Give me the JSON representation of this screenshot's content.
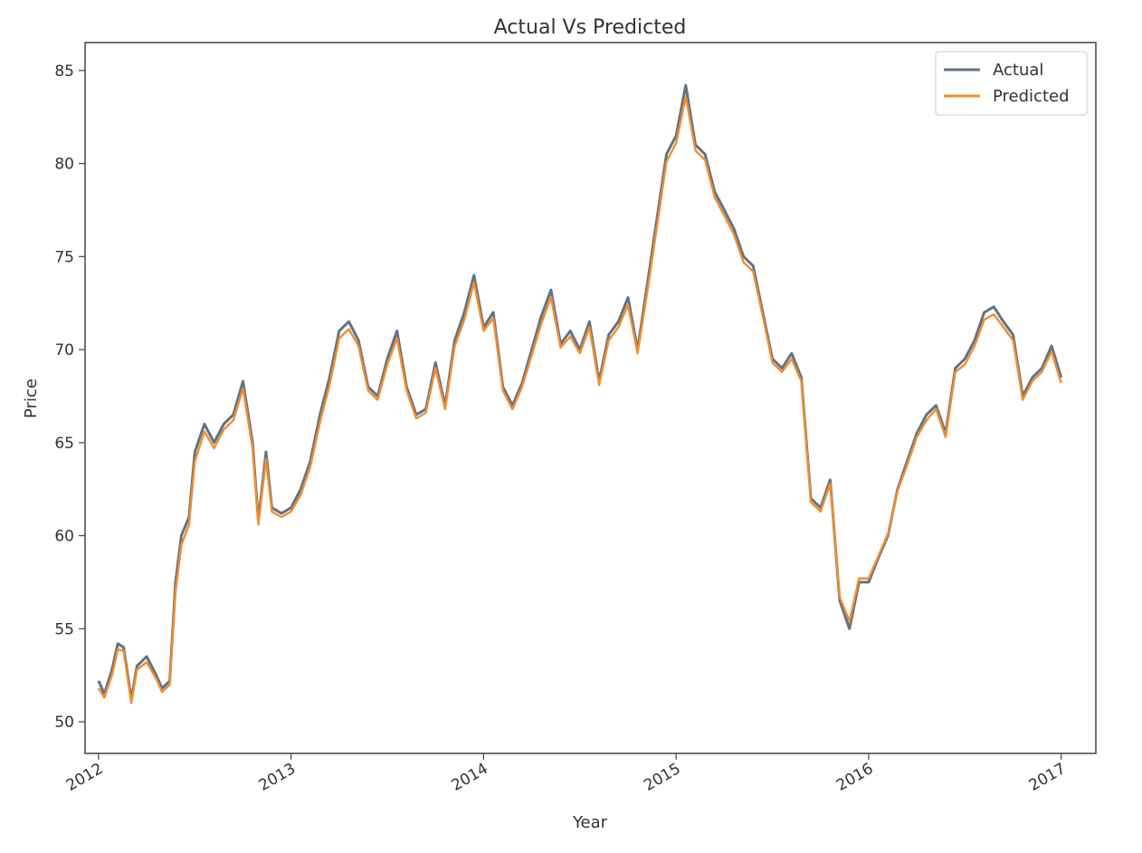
{
  "chart_data": {
    "type": "line",
    "title": "Actual Vs Predicted",
    "xlabel": "Year",
    "ylabel": "Price",
    "xlim": [
      2011.93,
      2017.18
    ],
    "ylim": [
      48.3,
      86.5
    ],
    "x_ticks": [
      {
        "value": 2012,
        "label": "2012"
      },
      {
        "value": 2013,
        "label": "2013"
      },
      {
        "value": 2014,
        "label": "2014"
      },
      {
        "value": 2015,
        "label": "2015"
      },
      {
        "value": 2016,
        "label": "2016"
      },
      {
        "value": 2017,
        "label": "2017"
      }
    ],
    "y_ticks": [
      {
        "value": 50,
        "label": "50"
      },
      {
        "value": 55,
        "label": "55"
      },
      {
        "value": 60,
        "label": "60"
      },
      {
        "value": 65,
        "label": "65"
      },
      {
        "value": 70,
        "label": "70"
      },
      {
        "value": 75,
        "label": "75"
      },
      {
        "value": 80,
        "label": "80"
      },
      {
        "value": 85,
        "label": "85"
      }
    ],
    "grid": false,
    "legend_position": "top-right",
    "x": [
      2012.0,
      2012.03,
      2012.07,
      2012.1,
      2012.13,
      2012.17,
      2012.2,
      2012.25,
      2012.3,
      2012.33,
      2012.37,
      2012.4,
      2012.43,
      2012.47,
      2012.5,
      2012.55,
      2012.6,
      2012.65,
      2012.7,
      2012.75,
      2012.8,
      2012.83,
      2012.87,
      2012.9,
      2012.95,
      2013.0,
      2013.05,
      2013.1,
      2013.15,
      2013.2,
      2013.25,
      2013.3,
      2013.35,
      2013.4,
      2013.45,
      2013.5,
      2013.55,
      2013.6,
      2013.65,
      2013.7,
      2013.75,
      2013.8,
      2013.85,
      2013.9,
      2013.95,
      2014.0,
      2014.05,
      2014.1,
      2014.15,
      2014.2,
      2014.25,
      2014.3,
      2014.35,
      2014.4,
      2014.45,
      2014.5,
      2014.55,
      2014.6,
      2014.65,
      2014.7,
      2014.75,
      2014.8,
      2014.85,
      2014.9,
      2014.95,
      2015.0,
      2015.05,
      2015.1,
      2015.15,
      2015.2,
      2015.25,
      2015.3,
      2015.35,
      2015.4,
      2015.45,
      2015.5,
      2015.55,
      2015.6,
      2015.65,
      2015.7,
      2015.75,
      2015.8,
      2015.85,
      2015.9,
      2015.95,
      2016.0,
      2016.05,
      2016.1,
      2016.15,
      2016.2,
      2016.25,
      2016.3,
      2016.35,
      2016.4,
      2016.45,
      2016.5,
      2016.55,
      2016.6,
      2016.65,
      2016.7,
      2016.75,
      2016.8,
      2016.85,
      2016.9,
      2016.95,
      2017.0
    ],
    "series": [
      {
        "name": "Actual",
        "color": "#5f7389",
        "values": [
          52.2,
          51.5,
          52.8,
          54.2,
          54.0,
          51.2,
          53.0,
          53.5,
          52.5,
          51.8,
          52.2,
          57.5,
          60.0,
          61.0,
          64.5,
          66.0,
          65.0,
          66.0,
          66.5,
          68.3,
          65.0,
          60.8,
          64.5,
          61.5,
          61.2,
          61.5,
          62.5,
          64.0,
          66.5,
          68.5,
          71.0,
          71.5,
          70.5,
          68.0,
          67.5,
          69.5,
          71.0,
          68.0,
          66.5,
          66.8,
          69.3,
          67.0,
          70.5,
          72.0,
          74.0,
          71.2,
          72.0,
          68.0,
          67.0,
          68.2,
          70.0,
          71.8,
          73.2,
          70.3,
          71.0,
          70.0,
          71.5,
          68.3,
          70.8,
          71.5,
          72.8,
          70.0,
          73.5,
          77.0,
          80.5,
          81.5,
          84.2,
          81.0,
          80.5,
          78.5,
          77.5,
          76.5,
          75.0,
          74.5,
          72.0,
          69.5,
          69.0,
          69.8,
          68.5,
          62.0,
          61.5,
          63.0,
          56.5,
          55.0,
          57.5,
          57.5,
          58.8,
          60.0,
          62.5,
          64.0,
          65.5,
          66.5,
          67.0,
          65.5,
          69.0,
          69.5,
          70.5,
          72.0,
          72.3,
          71.5,
          70.8,
          67.5,
          68.5,
          69.0,
          70.2,
          68.5
        ]
      },
      {
        "name": "Predicted",
        "color": "#f28e2b",
        "values": [
          51.8,
          51.3,
          52.5,
          53.9,
          53.8,
          51.0,
          52.8,
          53.2,
          52.3,
          51.6,
          52.0,
          57.0,
          59.5,
          60.6,
          64.0,
          65.6,
          64.7,
          65.7,
          66.2,
          67.9,
          64.7,
          60.6,
          64.1,
          61.3,
          61.0,
          61.3,
          62.2,
          63.7,
          66.1,
          68.1,
          70.6,
          71.1,
          70.2,
          67.8,
          67.3,
          69.2,
          70.6,
          67.8,
          66.3,
          66.6,
          69.0,
          66.8,
          70.2,
          71.6,
          73.6,
          71.0,
          71.7,
          67.8,
          66.8,
          68.0,
          69.7,
          71.4,
          72.8,
          70.1,
          70.7,
          69.8,
          71.2,
          68.1,
          70.5,
          71.2,
          72.4,
          69.8,
          73.1,
          76.6,
          80.1,
          81.1,
          83.6,
          80.7,
          80.2,
          78.2,
          77.2,
          76.2,
          74.7,
          74.2,
          71.8,
          69.3,
          68.8,
          69.5,
          68.3,
          61.8,
          61.3,
          62.8,
          56.7,
          55.4,
          57.7,
          57.7,
          58.9,
          60.1,
          62.4,
          63.8,
          65.3,
          66.2,
          66.8,
          65.3,
          68.8,
          69.2,
          70.2,
          71.6,
          71.9,
          71.2,
          70.5,
          67.3,
          68.3,
          68.8,
          69.9,
          68.2
        ]
      }
    ]
  }
}
